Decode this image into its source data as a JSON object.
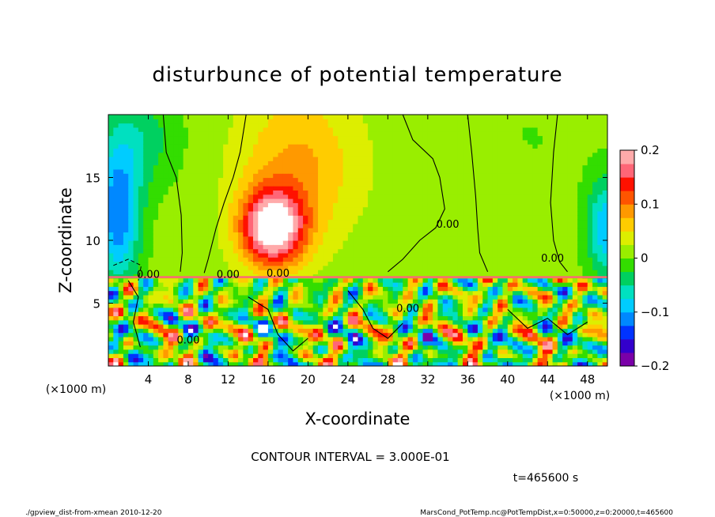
{
  "chart_data": {
    "type": "heatmap",
    "title": "disturbunce of potential temperature",
    "xlabel": "X-coordinate",
    "ylabel": "Z-coordinate",
    "x_unit_label": "(×1000 m)",
    "y_unit_label": "(×1000 m)",
    "xlim": [
      0,
      50
    ],
    "ylim": [
      0,
      20
    ],
    "x_ticks": [
      4,
      8,
      12,
      16,
      20,
      24,
      28,
      32,
      36,
      40,
      44,
      48
    ],
    "y_ticks": [
      5,
      10,
      15
    ],
    "colorbar": {
      "min": -0.2,
      "max": 0.2,
      "tick_values": [
        0.2,
        0.1,
        0,
        -0.1,
        -0.2
      ],
      "tick_labels": [
        "0.2",
        "0.1",
        "0",
        "−0.1",
        "−0.2"
      ]
    },
    "contour_interval_text": "CONTOUR INTERVAL = 3.000E-01",
    "contour_labels": [
      "0.00"
    ],
    "time_text": "t=465600 s",
    "footer_left": "./gpview_dist-from-xmean  2010-12-20",
    "footer_right": "MarsCond_PotTemp.nc@PotTempDist,x=0:50000,z=0:20000,t=465600",
    "grid": false,
    "legend": "none"
  },
  "colors": {
    "palette": [
      "#7a00a8",
      "#3300cc",
      "#0033ff",
      "#0088ff",
      "#00ccff",
      "#00e0c0",
      "#00d060",
      "#33dd00",
      "#99ee00",
      "#ddee00",
      "#ffcc00",
      "#ff9900",
      "#ff5500",
      "#ff1100",
      "#ff6677",
      "#ffaaaa"
    ]
  }
}
